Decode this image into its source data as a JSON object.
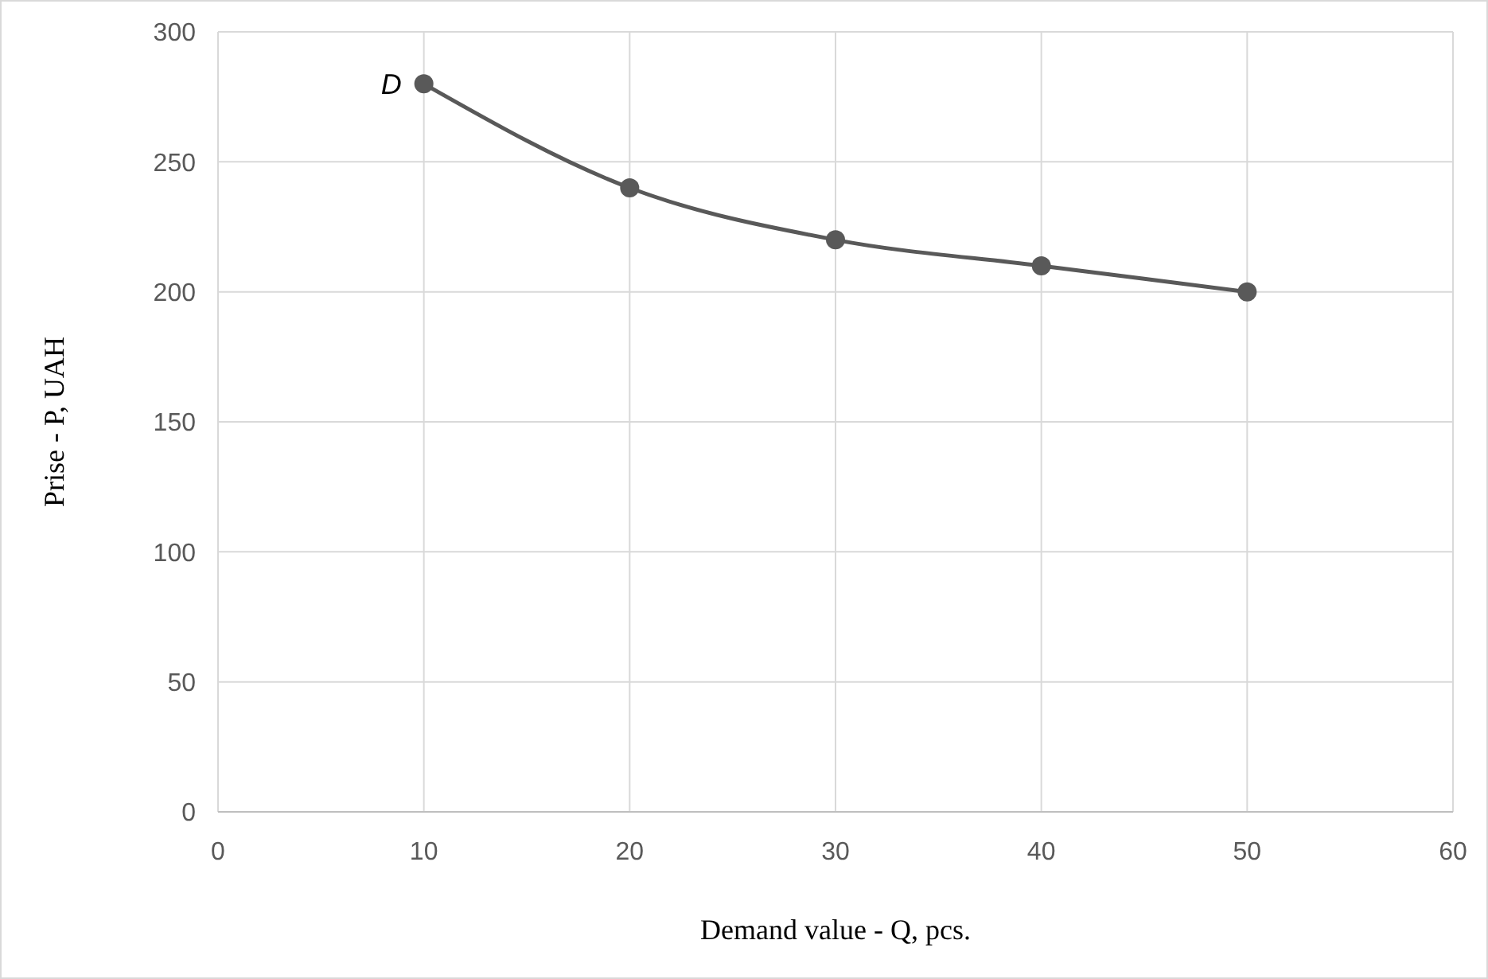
{
  "chart_data": {
    "type": "line",
    "xlabel": "Demand value - Q, pcs.",
    "ylabel": "Prise - P, UAH",
    "x": [
      10,
      20,
      30,
      40,
      50
    ],
    "series": [
      {
        "color": "#595959",
        "values": [
          280,
          240,
          220,
          210,
          200
        ]
      }
    ],
    "xlim": [
      0,
      60
    ],
    "xticks": [
      0,
      10,
      20,
      30,
      40,
      50,
      60
    ],
    "ylim": [
      0,
      300
    ],
    "yticks": [
      0,
      50,
      100,
      150,
      200,
      250,
      300
    ],
    "grid": true,
    "marker": "circle",
    "line_style": "solid",
    "annotations": [
      {
        "text": "D",
        "x": 10,
        "y": 280
      }
    ]
  }
}
